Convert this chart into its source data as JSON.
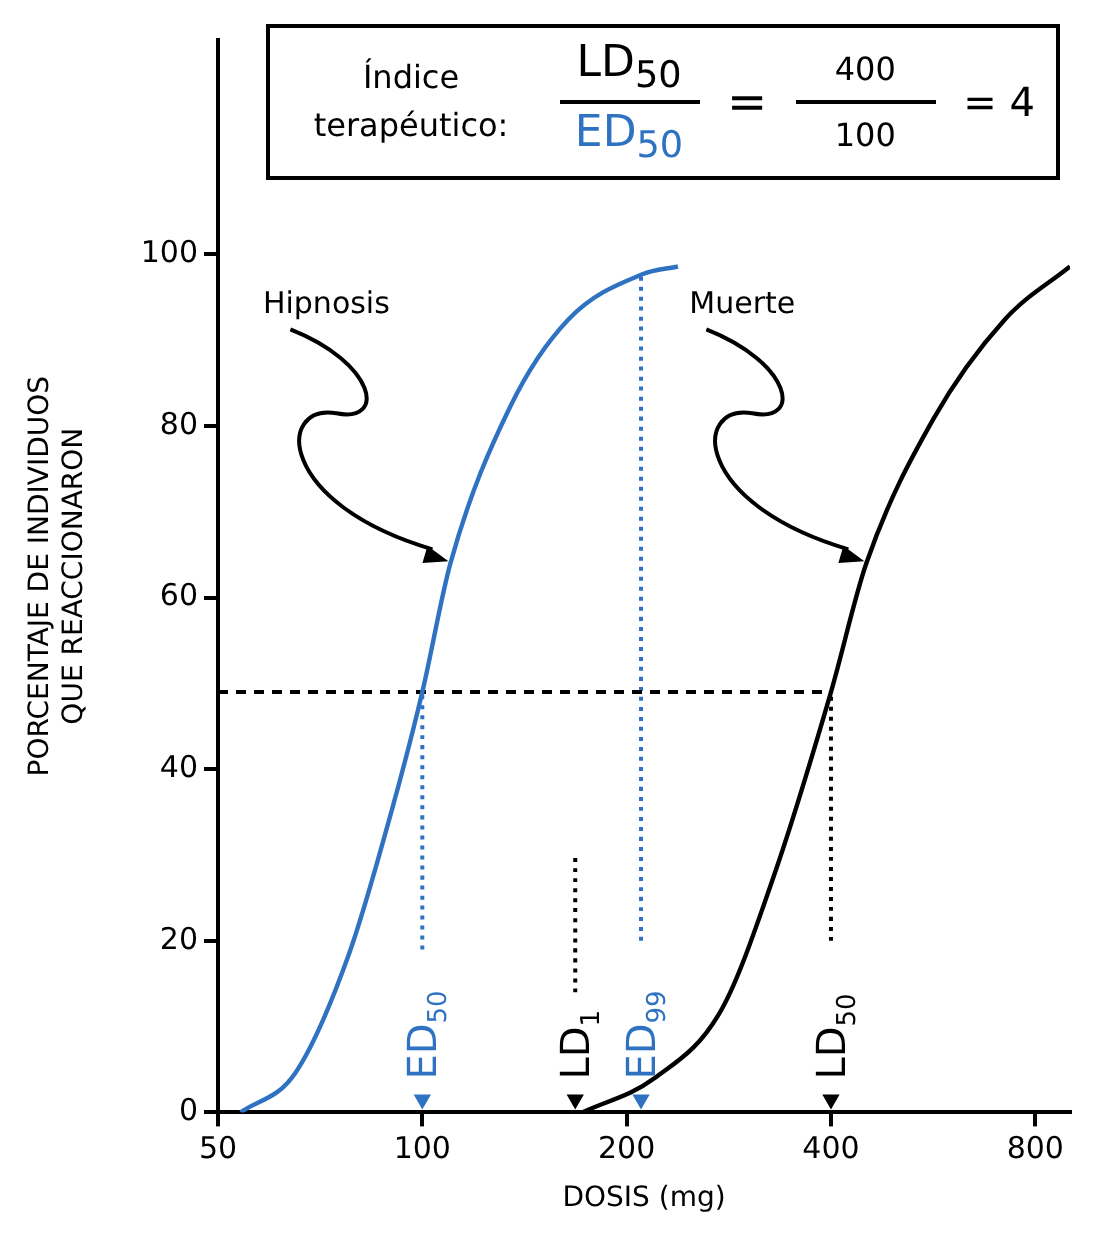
{
  "chart_data": {
    "type": "line",
    "xlabel": "DOSIS (mg)",
    "ylabel": "PORCENTAJE DE INDIVIDUOS QUE REACCIONARON",
    "log": "x",
    "xlim": [
      50,
      900
    ],
    "xticks": [
      50,
      100,
      200,
      400,
      800
    ],
    "ylim": [
      0,
      125
    ],
    "yticks": [
      0,
      20,
      40,
      60,
      80,
      100
    ],
    "grid": false,
    "legend": false,
    "series": [
      {
        "color": "#2f72c2",
        "x": [
          54,
          65,
          78,
          90,
          100,
          110,
          135,
          164,
          211,
          238
        ],
        "values": [
          0,
          4.6,
          18.5,
          35,
          49,
          64,
          82.4,
          92.4,
          97.7,
          98.6
        ]
      },
      {
        "color": "#000000",
        "x": [
          172,
          220,
          276,
          330,
          400,
          451,
          566,
          721,
          900
        ],
        "values": [
          0,
          4,
          12,
          27.7,
          49,
          64,
          80.8,
          92.4,
          98.6
        ]
      },
      {
        "color": "#000000",
        "line_style": "dashed",
        "x": [
          50,
          400
        ],
        "values": [
          49,
          49
        ]
      },
      {
        "color": "#2f72c2",
        "line_style": "dotted",
        "x": [
          100,
          100
        ],
        "values": [
          19,
          49
        ]
      },
      {
        "color": "#2f72c2",
        "line_style": "dotted",
        "x": [
          210,
          210
        ],
        "values": [
          20,
          97.7
        ]
      },
      {
        "color": "#000000",
        "line_style": "dotted",
        "x": [
          168,
          168
        ],
        "values": [
          14,
          30
        ]
      },
      {
        "color": "#000000",
        "line_style": "dotted",
        "x": [
          400,
          400
        ],
        "values": [
          20,
          49
        ]
      },
      {
        "type": "scatter",
        "marker": "triangle",
        "x": [
          100,
          168,
          210,
          400
        ],
        "values": [
          1.5,
          1.5,
          1.5,
          1.5
        ],
        "colors": [
          "#2f72c2",
          "#000000",
          "#2f72c2",
          "#000000"
        ]
      }
    ],
    "annotations": [
      "Índice terapéutico:",
      "LD$_{50}$",
      "ED$_{50}$",
      "=",
      "400",
      "100",
      "= 4",
      "ED$_{50}$",
      "LD$_{1}$",
      "ED$_{99}$",
      "LD$_{50}$",
      "Hipnosis",
      "Muerte"
    ]
  }
}
